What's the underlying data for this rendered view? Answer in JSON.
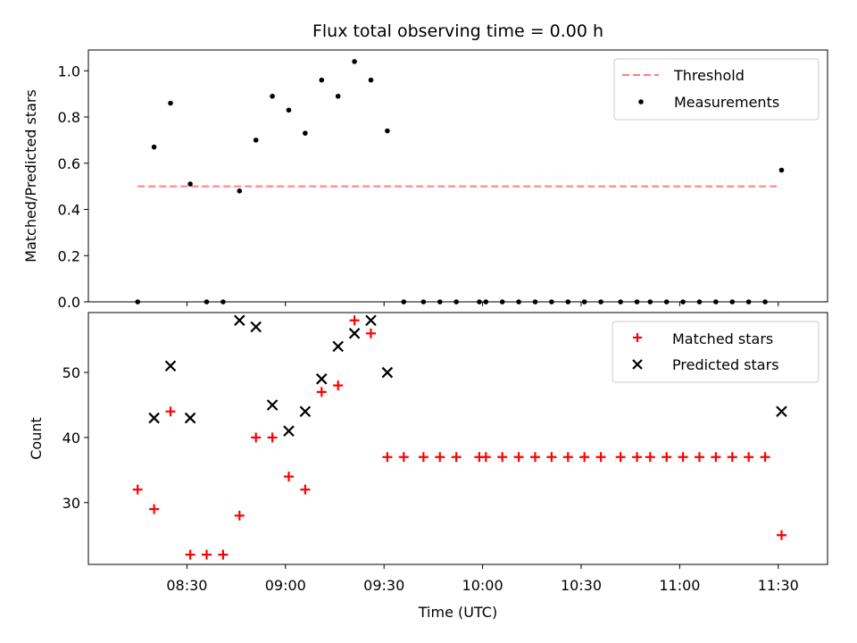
{
  "chart_data": [
    {
      "type": "scatter",
      "title": "Flux total observing time = 0.00 h",
      "xlabel": "",
      "ylabel": "Matched/Predicted stars",
      "ylim": [
        0,
        1.09
      ],
      "yticks": [
        "0.0",
        "0.2",
        "0.4",
        "0.6",
        "0.8",
        "1.0"
      ],
      "legend_position": "top-right",
      "threshold": {
        "name": "Threshold",
        "value": 0.5,
        "x_range": [
          15,
          210
        ],
        "color": "#ff7f7f",
        "style": "dashed"
      },
      "series": [
        {
          "name": "Measurements",
          "marker": "dot",
          "color": "#000000",
          "x": [
            15,
            20,
            25,
            31,
            36,
            41,
            46,
            51,
            56,
            61,
            66,
            71,
            76,
            81,
            86,
            91,
            96,
            102,
            107,
            112,
            119,
            121,
            126,
            131,
            136,
            141,
            146,
            151,
            156,
            162,
            167,
            171,
            176,
            181,
            186,
            191,
            196,
            201,
            206,
            211
          ],
          "y": [
            0,
            0.67,
            0.86,
            0.51,
            0,
            0,
            0.48,
            0.7,
            0.89,
            0.83,
            0.73,
            0.96,
            0.89,
            1.04,
            0.96,
            0.74,
            0,
            0,
            0,
            0,
            0,
            0,
            0,
            0,
            0,
            0,
            0,
            0,
            0,
            0,
            0,
            0,
            0,
            0,
            0,
            0,
            0,
            0,
            0,
            0.57
          ]
        }
      ]
    },
    {
      "type": "scatter",
      "title": "",
      "xlabel": "Time (UTC)",
      "ylabel": "Count",
      "ylim": [
        20.5,
        59.2
      ],
      "yticks": [
        "30",
        "40",
        "50"
      ],
      "xlim": [
        0,
        225
      ],
      "xticks": [
        "08:30",
        "09:00",
        "09:30",
        "10:00",
        "10:30",
        "11:00",
        "11:30"
      ],
      "xtick_values": [
        30,
        60,
        90,
        120,
        150,
        180,
        210
      ],
      "legend_position": "top-right",
      "series": [
        {
          "name": "Matched stars",
          "marker": "plus",
          "color": "#ff0000",
          "x": [
            15,
            20,
            25,
            31,
            36,
            41,
            46,
            51,
            56,
            61,
            66,
            71,
            76,
            81,
            86,
            91,
            96,
            102,
            107,
            112,
            119,
            121,
            126,
            131,
            136,
            141,
            146,
            151,
            156,
            162,
            167,
            171,
            176,
            181,
            186,
            191,
            196,
            201,
            206,
            211
          ],
          "y": [
            32,
            29,
            44,
            22,
            22,
            22,
            28,
            40,
            40,
            34,
            32,
            47,
            48,
            58,
            56,
            37,
            37,
            37,
            37,
            37,
            37,
            37,
            37,
            37,
            37,
            37,
            37,
            37,
            37,
            37,
            37,
            37,
            37,
            37,
            37,
            37,
            37,
            37,
            37,
            25
          ]
        },
        {
          "name": "Predicted stars",
          "marker": "x",
          "color": "#000000",
          "x": [
            20,
            25,
            31,
            46,
            51,
            56,
            61,
            66,
            71,
            76,
            81,
            86,
            91,
            211
          ],
          "y": [
            43,
            51,
            43,
            58,
            57,
            45,
            41,
            44,
            49,
            54,
            56,
            58,
            50,
            44
          ]
        }
      ]
    }
  ]
}
